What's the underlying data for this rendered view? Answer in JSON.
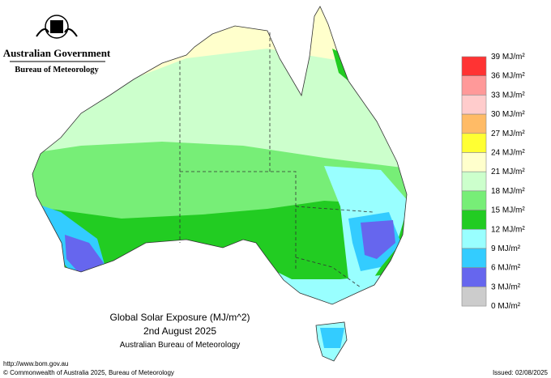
{
  "header": {
    "government": "Australian Government",
    "agency": "Bureau of Meteorology"
  },
  "map": {
    "title": "Global Solar Exposure (MJ/m^2)",
    "date": "2nd August 2025",
    "source": "Australian Bureau of Meteorology"
  },
  "legend": {
    "labels": [
      "39 MJ/m²",
      "36 MJ/m²",
      "33 MJ/m²",
      "30 MJ/m²",
      "27 MJ/m²",
      "24 MJ/m²",
      "21 MJ/m²",
      "18 MJ/m²",
      "15 MJ/m²",
      "12 MJ/m²",
      "9 MJ/m²",
      "6 MJ/m²",
      "3 MJ/m²",
      "0 MJ/m²"
    ],
    "colors": [
      "#ff3333",
      "#ff9999",
      "#ffcccc",
      "#ffbb66",
      "#ffff33",
      "#ffffcc",
      "#ccffcc",
      "#77ee77",
      "#22cc22",
      "#99ffff",
      "#33ccff",
      "#6666ee",
      "#cccccc"
    ]
  },
  "footer": {
    "url": "http://www.bom.gov.au",
    "copyright": "© Commonwealth of Australia 2025, Bureau of Meteorology",
    "issued": "Issued: 02/08/2025"
  }
}
